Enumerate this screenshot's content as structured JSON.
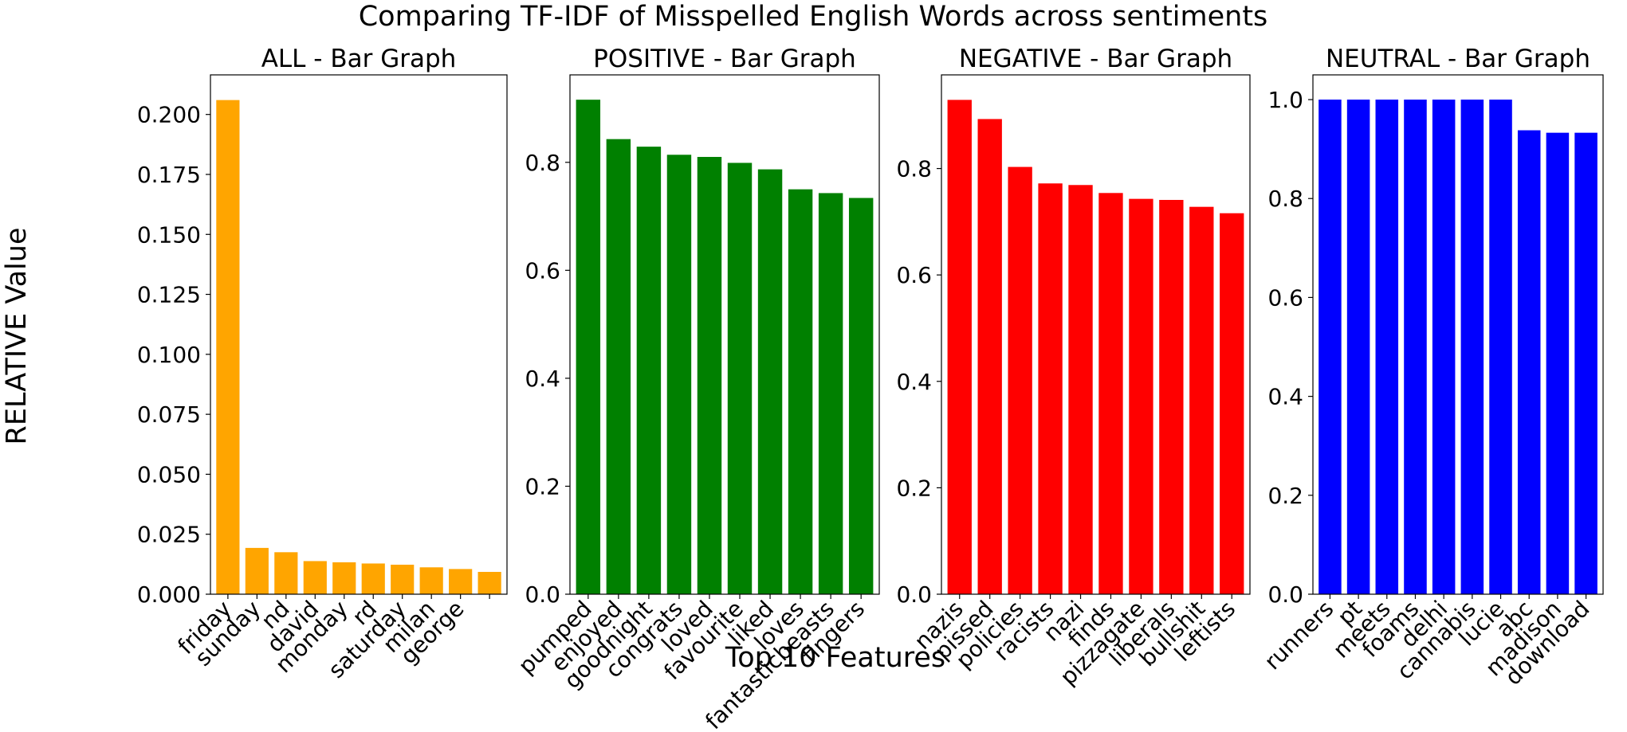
{
  "figure": {
    "suptitle": "Comparing TF-IDF of Misspelled English Words across sentiments",
    "ylabel": "RELATIVE Value",
    "xlabel": "Top 10 Features"
  },
  "chart_data": [
    {
      "type": "bar",
      "title": "ALL - Bar Graph",
      "color": "#FFA500",
      "categories": [
        "friday",
        "sunday",
        "nd",
        "david",
        "monday",
        "rd",
        "saturday",
        "milan",
        "george",
        ""
      ],
      "values": [
        0.206,
        0.0193,
        0.0175,
        0.0138,
        0.0133,
        0.0128,
        0.0123,
        0.0112,
        0.0105,
        0.0093
      ],
      "ylim": [
        0,
        0.2165
      ],
      "yticks": [
        0.0,
        0.025,
        0.05,
        0.075,
        0.1,
        0.125,
        0.15,
        0.175,
        0.2
      ],
      "ytick_labels": [
        "0.000",
        "0.025",
        "0.050",
        "0.075",
        "0.100",
        "0.125",
        "0.150",
        "0.175",
        "0.200"
      ]
    },
    {
      "type": "bar",
      "title": "POSITIVE - Bar Graph",
      "color": "#008000",
      "categories": [
        "pumped",
        "enjoyed",
        "goodnight",
        "congrats",
        "loved",
        "favourite",
        "liked",
        "loves",
        "fantasticbeasts",
        "fingers"
      ],
      "values": [
        0.916,
        0.843,
        0.829,
        0.814,
        0.81,
        0.799,
        0.787,
        0.75,
        0.743,
        0.734
      ],
      "ylim": [
        0,
        0.962
      ],
      "yticks": [
        0.0,
        0.2,
        0.4,
        0.6,
        0.8
      ],
      "ytick_labels": [
        "0.0",
        "0.2",
        "0.4",
        "0.6",
        "0.8"
      ]
    },
    {
      "type": "bar",
      "title": "NEGATIVE - Bar Graph",
      "color": "#FF0000",
      "categories": [
        "nazis",
        "pissed",
        "policies",
        "racists",
        "nazi",
        "finds",
        "pizzagate",
        "liberals",
        "bullshit",
        "leftists"
      ],
      "values": [
        0.929,
        0.893,
        0.803,
        0.772,
        0.769,
        0.754,
        0.743,
        0.741,
        0.728,
        0.716
      ],
      "ylim": [
        0,
        0.976
      ],
      "yticks": [
        0.0,
        0.2,
        0.4,
        0.6,
        0.8
      ],
      "ytick_labels": [
        "0.0",
        "0.2",
        "0.4",
        "0.6",
        "0.8"
      ]
    },
    {
      "type": "bar",
      "title": "NEUTRAL - Bar Graph",
      "color": "#0000FF",
      "categories": [
        "runners",
        "pt",
        "meets",
        "foams",
        "delhi",
        "cannabis",
        "lucie",
        "abc",
        "madison",
        "download"
      ],
      "values": [
        1.0,
        1.0,
        1.0,
        1.0,
        1.0,
        1.0,
        1.0,
        0.938,
        0.933,
        0.933
      ],
      "ylim": [
        0,
        1.05
      ],
      "yticks": [
        0.0,
        0.2,
        0.4,
        0.6,
        0.8,
        1.0
      ],
      "ytick_labels": [
        "0.0",
        "0.2",
        "0.4",
        "0.6",
        "0.8",
        "1.0"
      ]
    }
  ]
}
